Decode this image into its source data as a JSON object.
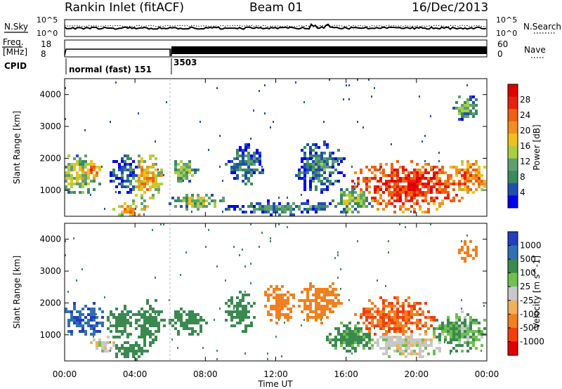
{
  "header": {
    "station": "Rankin Inlet (fitACF)",
    "beam": "Beam 01",
    "date": "16/Dec/2013"
  },
  "top_panels": {
    "nsky_label": "N.Sky",
    "nsearch_label": "N.Search",
    "noise_ticks_left": [
      "10^5",
      "10^0"
    ],
    "noise_ticks_right": [
      "10^5",
      "10^0"
    ],
    "freq_label_1": "Freq.",
    "freq_label_2": "[MHz]",
    "freq_ticks": [
      "18",
      "8"
    ],
    "nave_ticks": [
      "60",
      "0"
    ],
    "nave_label": "Nave",
    "cpid_label": "CPID",
    "cpid_segments": [
      "normal (fast) 151",
      "3503"
    ]
  },
  "axes": {
    "xlabel": "Time UT",
    "x_ticks": [
      "00:00",
      "04:00",
      "08:00",
      "12:00",
      "16:00",
      "20:00",
      "00:00"
    ],
    "ylabel": "Slant Range [km]",
    "y_ticks": [
      "1000",
      "2000",
      "3000",
      "4000"
    ]
  },
  "power_scale": {
    "label": "Power [dB]",
    "ticks": [
      "4",
      "8",
      "12",
      "16",
      "20",
      "24",
      "28"
    ],
    "colors": [
      "#0000ee",
      "#2050b0",
      "#3a8a60",
      "#60a070",
      "#a8d040",
      "#f0c020",
      "#f09020",
      "#f06010",
      "#e82010",
      "#e00000"
    ]
  },
  "velocity_scale": {
    "label": "Velocity [m s^-1]",
    "ticks": [
      "1000",
      "500",
      "100",
      "25",
      "-25",
      "-100",
      "-500",
      "-1000"
    ],
    "colors": [
      "#2040c0",
      "#3070b0",
      "#3a8a50",
      "#70c050",
      "#c8c8c8",
      "#f0b060",
      "#f08020",
      "#f04010",
      "#e00000"
    ]
  },
  "chart_data": {
    "type": "heatmap",
    "x_range_hours": [
      0,
      24
    ],
    "y_range_km": [
      180,
      4500
    ],
    "panels": [
      {
        "name": "Power",
        "blobs": [
          {
            "t": 0.8,
            "r": 1500,
            "dt": 1.5,
            "dr": 700,
            "value": 16
          },
          {
            "t": 1.6,
            "r": 1600,
            "dt": 0.6,
            "dr": 450,
            "value": 24
          },
          {
            "t": 3.5,
            "r": 1500,
            "dt": 1.0,
            "dr": 700,
            "value": 8
          },
          {
            "t": 4.7,
            "r": 1400,
            "dt": 1.0,
            "dr": 900,
            "value": 20
          },
          {
            "t": 3.8,
            "r": 400,
            "dt": 1.2,
            "dr": 300,
            "value": 20
          },
          {
            "t": 6.8,
            "r": 1600,
            "dt": 0.9,
            "dr": 400,
            "value": 14
          },
          {
            "t": 7.5,
            "r": 650,
            "dt": 1.8,
            "dr": 300,
            "value": 14
          },
          {
            "t": 10.3,
            "r": 1800,
            "dt": 1.2,
            "dr": 700,
            "value": 9
          },
          {
            "t": 12.5,
            "r": 450,
            "dt": 4.0,
            "dr": 250,
            "value": 10
          },
          {
            "t": 14.5,
            "r": 1700,
            "dt": 1.6,
            "dr": 900,
            "value": 9
          },
          {
            "t": 16.5,
            "r": 700,
            "dt": 1.5,
            "dr": 500,
            "value": 14
          },
          {
            "t": 19.5,
            "r": 1100,
            "dt": 4.0,
            "dr": 900,
            "value": 28
          },
          {
            "t": 23.0,
            "r": 1400,
            "dt": 1.5,
            "dr": 600,
            "value": 24
          },
          {
            "t": 22.8,
            "r": 3600,
            "dt": 0.8,
            "dr": 500,
            "value": 12
          }
        ]
      },
      {
        "name": "Velocity",
        "blobs": [
          {
            "t": 1.0,
            "r": 1500,
            "dt": 1.6,
            "dr": 600,
            "value": 700
          },
          {
            "t": 3.2,
            "r": 1400,
            "dt": 1.0,
            "dr": 600,
            "value": 200
          },
          {
            "t": 4.8,
            "r": 1400,
            "dt": 1.0,
            "dr": 800,
            "value": 150
          },
          {
            "t": 3.8,
            "r": 500,
            "dt": 1.2,
            "dr": 350,
            "value": 150
          },
          {
            "t": 2.2,
            "r": 700,
            "dt": 0.8,
            "dr": 300,
            "value": 0
          },
          {
            "t": 7.0,
            "r": 1400,
            "dt": 1.2,
            "dr": 500,
            "value": 150
          },
          {
            "t": 10.0,
            "r": 1700,
            "dt": 1.0,
            "dr": 700,
            "value": 150
          },
          {
            "t": 12.2,
            "r": 2000,
            "dt": 1.0,
            "dr": 700,
            "value": -150
          },
          {
            "t": 14.5,
            "r": 2000,
            "dt": 1.4,
            "dr": 800,
            "value": -200
          },
          {
            "t": 16.3,
            "r": 900,
            "dt": 1.5,
            "dr": 600,
            "value": 100
          },
          {
            "t": 18.8,
            "r": 1500,
            "dt": 2.5,
            "dr": 800,
            "value": -300
          },
          {
            "t": 19.5,
            "r": 700,
            "dt": 2.5,
            "dr": 500,
            "value": 0
          },
          {
            "t": 22.5,
            "r": 1100,
            "dt": 1.8,
            "dr": 700,
            "value": 60
          },
          {
            "t": 22.9,
            "r": 3600,
            "dt": 0.6,
            "dr": 400,
            "value": -200
          }
        ]
      }
    ]
  }
}
